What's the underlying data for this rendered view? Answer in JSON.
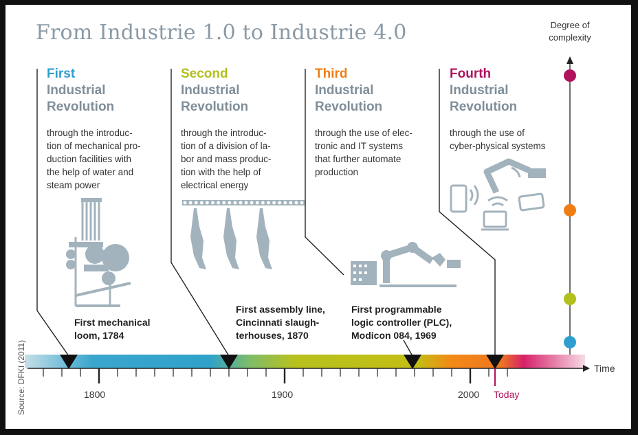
{
  "title": "From Industrie 1.0 to Industrie 4.0",
  "source": "Source: DFKI (2011)",
  "degree_label": "Degree of complexity",
  "time_label": "Time",
  "today_label": "Today",
  "colors": {
    "first": "#2f9fd0",
    "second": "#b2bf1c",
    "third": "#f07d14",
    "fourth": "#b0125e",
    "icon": "#a3b3bd",
    "heading": "#7f8e99"
  },
  "revolutions": [
    {
      "ordinal": "First",
      "line2": "Industrial",
      "line3": "Revolution",
      "description": "through the introduc-\ntion of mechanical pro-\nduction facilities with\nthe help of water and\nsteam power"
    },
    {
      "ordinal": "Second",
      "line2": "Industrial",
      "line3": "Revolution",
      "description": "through the introduc-\ntion of a division of la-\nbor and mass produc-\ntion with the help of\nelectrical energy"
    },
    {
      "ordinal": "Third",
      "line2": "Industrial",
      "line3": "Revolution",
      "description": "through the use of elec-\ntronic and IT systems\nthat further automate\nproduction"
    },
    {
      "ordinal": "Fourth",
      "line2": "Industrial",
      "line3": "Revolution",
      "description": "through the use of\ncyber-physical systems"
    }
  ],
  "milestones": [
    {
      "text": "First mechanical\nloom, 1784",
      "year": 1784
    },
    {
      "text": "First assembly line,\nCincinnati slaugh-\nterhouses, 1870",
      "year": 1870
    },
    {
      "text": "First programmable\nlogic controller (PLC),\nModicon 084, 1969",
      "year": 1969
    }
  ],
  "timeline": {
    "year_ticks": [
      "1800",
      "1900",
      "2000"
    ],
    "today_year": 2013
  },
  "icons": [
    "loom-icon",
    "assembly-line-icon",
    "robot-arm-plc-icon",
    "cyber-physical-icon"
  ]
}
